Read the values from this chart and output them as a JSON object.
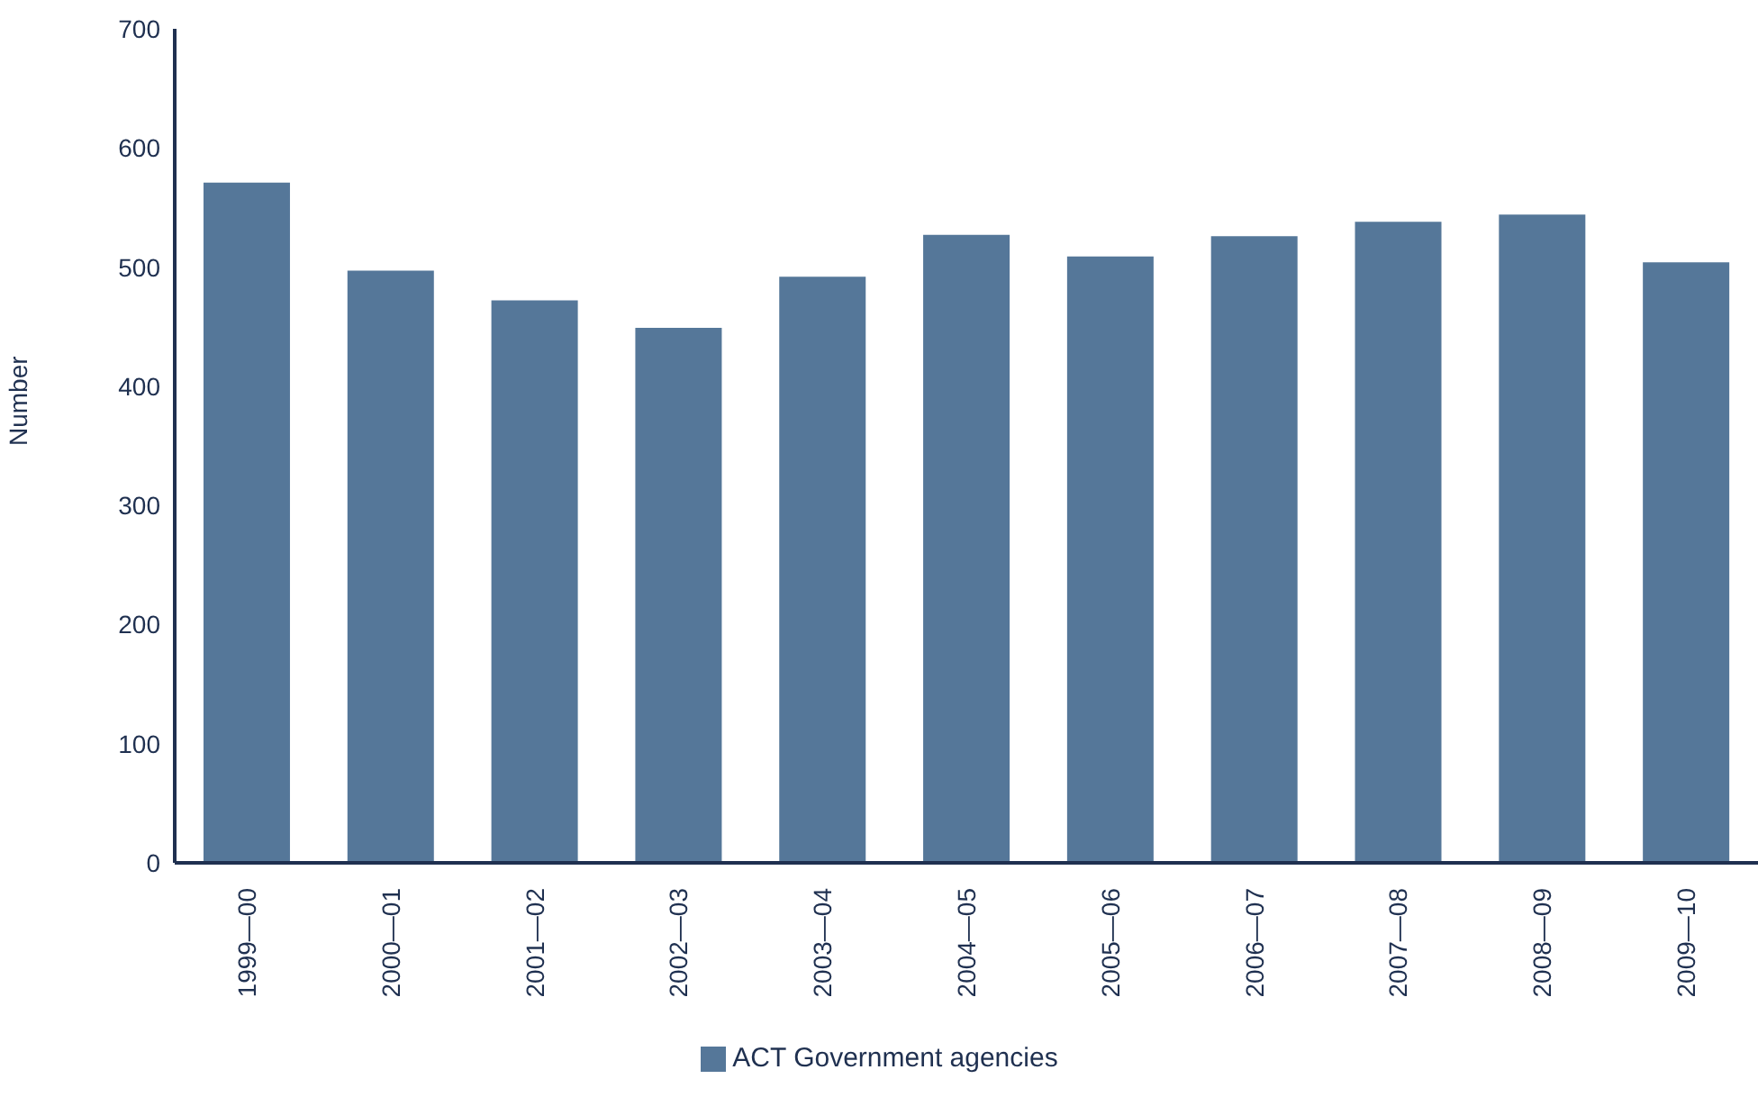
{
  "chart_data": {
    "type": "bar",
    "ylabel": "Number",
    "categories": [
      "1999—00",
      "2000—01",
      "2001—02",
      "2002—03",
      "2003—04",
      "2004—05",
      "2005—06",
      "2006—07",
      "2007—08",
      "2008—09",
      "2009—10"
    ],
    "series": [
      {
        "name": "ACT Government agencies",
        "color": "#557799",
        "values": [
          571,
          497,
          472,
          449,
          492,
          527,
          509,
          526,
          538,
          544,
          504
        ]
      }
    ],
    "ylim": [
      0,
      700
    ],
    "yticks": [
      0,
      100,
      200,
      300,
      400,
      500,
      600,
      700
    ],
    "grid": false,
    "legend": "bottom"
  }
}
